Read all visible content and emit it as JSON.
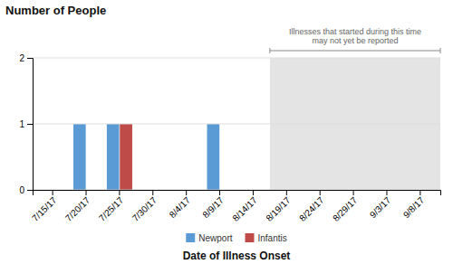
{
  "chart_data": {
    "type": "bar",
    "title": "Number of People",
    "xlabel": "Date of Illness Onset",
    "categories": [
      "7/15/17",
      "7/20/17",
      "7/25/17",
      "7/30/17",
      "8/4/17",
      "8/9/17",
      "8/14/17",
      "8/19/17",
      "8/24/17",
      "8/29/17",
      "9/3/17",
      "9/8/17"
    ],
    "series": [
      {
        "name": "Newport",
        "color": "#5b9bd5",
        "values": [
          0,
          1,
          1,
          0,
          0,
          1,
          0,
          0,
          0,
          0,
          0,
          0
        ]
      },
      {
        "name": "Infantis",
        "color": "#be4b48",
        "values": [
          0,
          0,
          1,
          0,
          0,
          0,
          0,
          0,
          0,
          0,
          0,
          0
        ]
      }
    ],
    "ylim": [
      0,
      2
    ],
    "yticks": [
      0,
      1,
      2
    ],
    "grid": true,
    "legend": "bottom",
    "annotations": [
      {
        "text": "Illnesses that started during this time may not yet be reported",
        "x_start": "8/19/17",
        "color": "#e4e4e4"
      }
    ]
  }
}
